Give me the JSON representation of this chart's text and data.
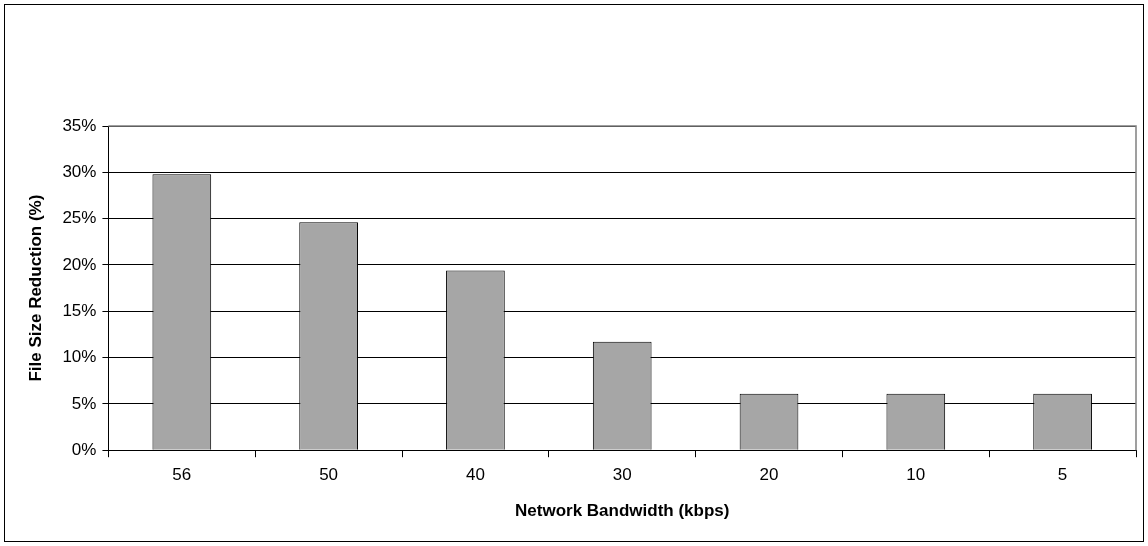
{
  "chart_data": {
    "type": "bar",
    "xlabel": "Network Bandwidth (kbps)",
    "ylabel": "File Size Reduction (%)",
    "categories": [
      "56",
      "50",
      "40",
      "30",
      "20",
      "10",
      "5"
    ],
    "values": [
      29.8,
      24.6,
      19.4,
      11.7,
      6.1,
      6.1,
      6.1
    ],
    "color": "#a6a6a6",
    "ylim": [
      0,
      35
    ],
    "yticks": [
      {
        "value": 0,
        "label": "0%"
      },
      {
        "value": 5,
        "label": "5%"
      },
      {
        "value": 10,
        "label": "10%"
      },
      {
        "value": 15,
        "label": "15%"
      },
      {
        "value": 20,
        "label": "20%"
      },
      {
        "value": 25,
        "label": "25%"
      },
      {
        "value": 30,
        "label": "30%"
      },
      {
        "value": 35,
        "label": "35%"
      }
    ],
    "grid": "y",
    "legend": false
  }
}
